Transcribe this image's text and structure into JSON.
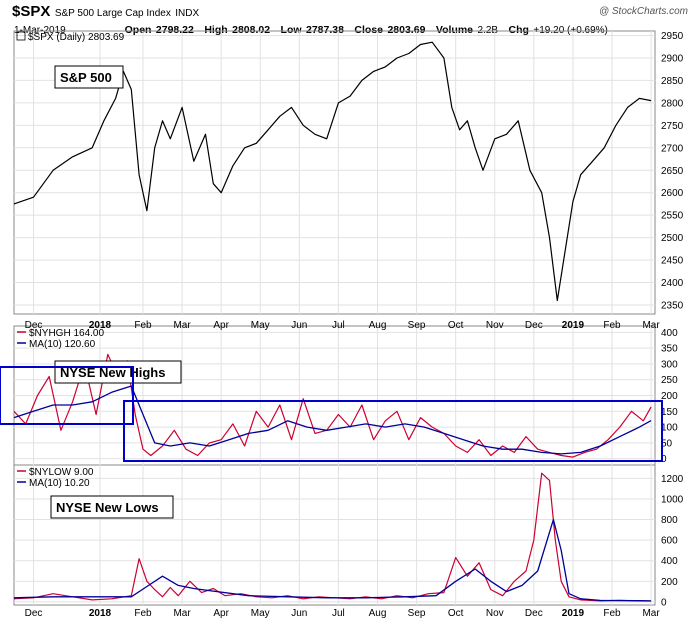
{
  "header": {
    "symbol": "$SPX",
    "name": "S&P 500 Large Cap Index",
    "exchange": "INDX",
    "date": "1-Mar-2019",
    "open_label": "Open",
    "open": "2798.22",
    "high_label": "High",
    "high": "2808.02",
    "low_label": "Low",
    "low": "2787.38",
    "close_label": "Close",
    "close": "2803.69",
    "volume_label": "Volume",
    "volume": "2.2B",
    "chg_label": "Chg",
    "chg": "+19.20 (+0.69%)",
    "watermark": "@ StockCharts.com"
  },
  "chart_data": [
    {
      "type": "line",
      "legend": "$SPX (Daily) 2803.69",
      "label": "S&P 500",
      "ylim": [
        2330,
        2960
      ],
      "yticks": [
        2350,
        2400,
        2450,
        2500,
        2550,
        2600,
        2650,
        2700,
        2750,
        2800,
        2850,
        2900,
        2950
      ],
      "x_ticks": [
        "Dec",
        "2018",
        "Feb",
        "Mar",
        "Apr",
        "May",
        "Jun",
        "Jul",
        "Aug",
        "Sep",
        "Oct",
        "Nov",
        "Dec",
        "2019",
        "Feb",
        "Mar"
      ],
      "x_tick_pos": [
        0.5,
        2.2,
        3.3,
        4.3,
        5.3,
        6.3,
        7.3,
        8.3,
        9.3,
        10.3,
        11.3,
        12.3,
        13.3,
        14.3,
        15.3,
        16.3
      ],
      "series": [
        {
          "name": "$SPX",
          "color": "#000000",
          "x": [
            0,
            0.5,
            1.0,
            1.5,
            2.0,
            2.3,
            2.6,
            2.8,
            3.0,
            3.2,
            3.4,
            3.6,
            3.8,
            4.0,
            4.3,
            4.6,
            4.9,
            5.1,
            5.3,
            5.6,
            5.9,
            6.2,
            6.5,
            6.8,
            7.1,
            7.4,
            7.7,
            8.0,
            8.3,
            8.6,
            8.9,
            9.2,
            9.5,
            9.8,
            10.1,
            10.4,
            10.7,
            11.0,
            11.2,
            11.4,
            11.6,
            11.8,
            12.0,
            12.3,
            12.6,
            12.9,
            13.2,
            13.5,
            13.7,
            13.9,
            14.1,
            14.3,
            14.5,
            14.8,
            15.1,
            15.4,
            15.7,
            16.0,
            16.3
          ],
          "values": [
            2575,
            2590,
            2650,
            2680,
            2700,
            2760,
            2810,
            2870,
            2830,
            2640,
            2560,
            2700,
            2760,
            2720,
            2790,
            2670,
            2730,
            2620,
            2600,
            2660,
            2700,
            2710,
            2740,
            2770,
            2790,
            2750,
            2730,
            2720,
            2800,
            2815,
            2850,
            2870,
            2880,
            2900,
            2910,
            2930,
            2935,
            2900,
            2790,
            2740,
            2760,
            2700,
            2650,
            2720,
            2730,
            2760,
            2650,
            2600,
            2500,
            2360,
            2470,
            2580,
            2640,
            2670,
            2700,
            2750,
            2790,
            2810,
            2805
          ]
        }
      ]
    },
    {
      "type": "line",
      "legend": "$NYHGH 164.00",
      "label": "NYSE New Highs",
      "ylim": [
        -20,
        420
      ],
      "yticks": [
        0,
        50,
        100,
        150,
        200,
        250,
        300,
        350,
        400
      ],
      "series": [
        {
          "name": "$NYHGH",
          "color": "#cc0033",
          "x": [
            0,
            0.3,
            0.6,
            0.9,
            1.2,
            1.5,
            1.8,
            2.1,
            2.4,
            2.7,
            2.9,
            3.1,
            3.3,
            3.5,
            3.8,
            4.1,
            4.4,
            4.7,
            5.0,
            5.3,
            5.6,
            5.9,
            6.2,
            6.5,
            6.8,
            7.1,
            7.4,
            7.7,
            8.0,
            8.3,
            8.6,
            8.9,
            9.2,
            9.5,
            9.8,
            10.1,
            10.4,
            10.7,
            11.0,
            11.3,
            11.6,
            11.9,
            12.2,
            12.5,
            12.8,
            13.1,
            13.4,
            13.7,
            14.0,
            14.3,
            14.6,
            14.9,
            15.2,
            15.5,
            15.8,
            16.1,
            16.3
          ],
          "values": [
            150,
            110,
            200,
            260,
            90,
            180,
            300,
            140,
            330,
            250,
            310,
            140,
            30,
            10,
            40,
            90,
            30,
            10,
            50,
            60,
            110,
            40,
            150,
            100,
            170,
            60,
            190,
            80,
            90,
            140,
            100,
            170,
            60,
            120,
            150,
            60,
            130,
            100,
            80,
            40,
            20,
            60,
            10,
            40,
            20,
            70,
            30,
            20,
            10,
            5,
            20,
            30,
            60,
            100,
            150,
            120,
            164
          ]
        },
        {
          "name": "MA(10) 120.60",
          "color": "#000099",
          "x": [
            0,
            0.5,
            1.0,
            1.5,
            2.0,
            2.5,
            3.0,
            3.3,
            3.6,
            4.0,
            4.5,
            5.0,
            5.5,
            6.0,
            6.5,
            7.0,
            7.5,
            8.0,
            8.5,
            9.0,
            9.5,
            10.0,
            10.5,
            11.0,
            11.5,
            12.0,
            12.5,
            13.0,
            13.5,
            14.0,
            14.5,
            15.0,
            15.5,
            16.0,
            16.3
          ],
          "values": [
            130,
            150,
            170,
            170,
            180,
            210,
            230,
            140,
            50,
            40,
            50,
            40,
            60,
            80,
            90,
            120,
            100,
            90,
            100,
            110,
            100,
            110,
            100,
            80,
            60,
            40,
            30,
            30,
            20,
            15,
            20,
            40,
            70,
            100,
            120.6
          ]
        }
      ]
    },
    {
      "type": "line",
      "legend": "$NYLOW 9.00",
      "label": "NYSE New Lows",
      "ylim": [
        -30,
        1330
      ],
      "yticks": [
        0,
        200,
        400,
        600,
        800,
        1000,
        1200
      ],
      "series": [
        {
          "name": "$NYLOW",
          "color": "#cc0033",
          "x": [
            0,
            0.5,
            1.0,
            1.5,
            2.0,
            2.5,
            3.0,
            3.2,
            3.4,
            3.6,
            3.8,
            4.0,
            4.2,
            4.5,
            4.8,
            5.1,
            5.4,
            5.8,
            6.2,
            6.6,
            7.0,
            7.4,
            7.8,
            8.2,
            8.6,
            9.0,
            9.4,
            9.8,
            10.2,
            10.6,
            11.0,
            11.3,
            11.6,
            11.9,
            12.2,
            12.5,
            12.8,
            13.1,
            13.3,
            13.5,
            13.7,
            13.85,
            14.0,
            14.2,
            14.5,
            15.0,
            15.5,
            16.0,
            16.3
          ],
          "values": [
            30,
            40,
            80,
            50,
            20,
            30,
            60,
            420,
            200,
            120,
            50,
            140,
            60,
            200,
            90,
            130,
            60,
            80,
            50,
            40,
            60,
            30,
            50,
            40,
            30,
            50,
            30,
            60,
            40,
            80,
            90,
            430,
            250,
            380,
            120,
            60,
            200,
            300,
            600,
            1250,
            1180,
            600,
            200,
            50,
            20,
            10,
            15,
            10,
            9
          ]
        },
        {
          "name": "MA(10) 10.20",
          "color": "#000099",
          "x": [
            0,
            1.0,
            2.0,
            3.0,
            3.4,
            3.8,
            4.2,
            4.6,
            5.0,
            6.0,
            7.0,
            8.0,
            9.0,
            10.0,
            10.8,
            11.3,
            11.8,
            12.2,
            12.6,
            13.0,
            13.4,
            13.8,
            14.0,
            14.2,
            14.5,
            15.0,
            16.0,
            16.3
          ],
          "values": [
            40,
            50,
            50,
            50,
            150,
            250,
            160,
            130,
            110,
            60,
            50,
            40,
            40,
            50,
            60,
            200,
            320,
            200,
            100,
            160,
            300,
            800,
            500,
            80,
            30,
            15,
            12,
            10.2
          ]
        }
      ]
    }
  ]
}
